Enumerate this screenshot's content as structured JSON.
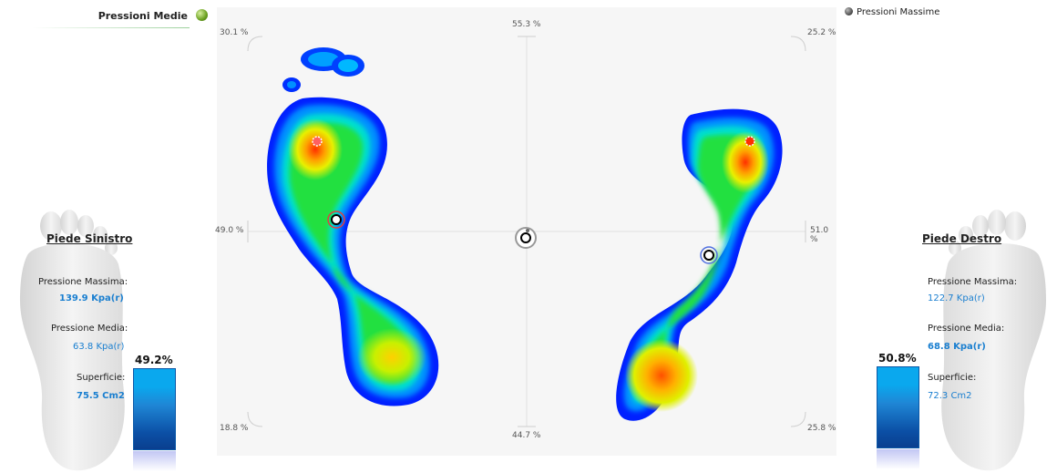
{
  "legend": {
    "medie_label": "Pressioni Medie",
    "massime_label": "Pressioni Massime"
  },
  "plot": {
    "pct_top": "55.3 %",
    "pct_bottom": "44.7 %",
    "pct_left": "49.0 %",
    "pct_right": "51.0 %",
    "pct_top_left": "30.1 %",
    "pct_top_right": "25.2 %",
    "pct_bottom_left": "18.8 %",
    "pct_bottom_right": "25.8 %"
  },
  "left": {
    "title": "Piede Sinistro",
    "max_label": "Pressione Massima:",
    "max_value": "139.9 Kpa(r)",
    "mean_label": "Pressione Media:",
    "mean_value": "63.8 Kpa(r)",
    "surface_label": "Superficie:",
    "surface_value": "75.5 Cm2",
    "percent": "49.2%"
  },
  "right": {
    "title": "Piede Destro",
    "max_label": "Pressione Massima:",
    "max_value": "122.7 Kpa(r)",
    "mean_label": "Pressione Media:",
    "mean_value": "68.8 Kpa(r)",
    "surface_label": "Superficie:",
    "surface_value": "72.3 Cm2",
    "percent": "50.8%"
  },
  "colors": {
    "value_text": "#1a7fd0",
    "bar_top": "#0aa8ee",
    "bar_bottom": "#0a3f8f",
    "heat_low": "#0000ff",
    "heat_high": "#ff2a00"
  }
}
